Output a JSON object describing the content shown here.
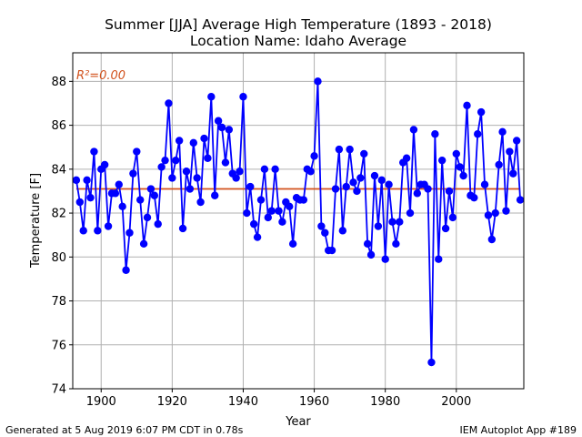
{
  "chart_data": {
    "type": "line",
    "title": "Summer [JJA] Average High Temperature (1893 - 2018)",
    "subtitle": "Location Name: Idaho Average",
    "xlabel": "Year",
    "ylabel": "Temperature [F]",
    "xlim": [
      1892,
      2019
    ],
    "ylim": [
      74,
      89.3
    ],
    "xticks": [
      1900,
      1920,
      1940,
      1960,
      1980,
      2000
    ],
    "yticks": [
      74,
      76,
      78,
      80,
      82,
      84,
      86,
      88
    ],
    "grid": true,
    "annotation": "R²=0.00",
    "annotation_color": "#d2531e",
    "series": [
      {
        "color": "#0000ff",
        "marker": "circle",
        "x": [
          1893,
          1894,
          1895,
          1896,
          1897,
          1898,
          1899,
          1900,
          1901,
          1902,
          1903,
          1904,
          1905,
          1906,
          1907,
          1908,
          1909,
          1910,
          1911,
          1912,
          1913,
          1914,
          1915,
          1916,
          1917,
          1918,
          1919,
          1920,
          1921,
          1922,
          1923,
          1924,
          1925,
          1926,
          1927,
          1928,
          1929,
          1930,
          1931,
          1932,
          1933,
          1934,
          1935,
          1936,
          1937,
          1938,
          1939,
          1940,
          1941,
          1942,
          1943,
          1944,
          1945,
          1946,
          1947,
          1948,
          1949,
          1950,
          1951,
          1952,
          1953,
          1954,
          1955,
          1956,
          1957,
          1958,
          1959,
          1960,
          1961,
          1962,
          1963,
          1964,
          1965,
          1966,
          1967,
          1968,
          1969,
          1970,
          1971,
          1972,
          1973,
          1974,
          1975,
          1976,
          1977,
          1978,
          1979,
          1980,
          1981,
          1982,
          1983,
          1984,
          1985,
          1986,
          1987,
          1988,
          1989,
          1990,
          1991,
          1992,
          1993,
          1994,
          1995,
          1996,
          1997,
          1998,
          1999,
          2000,
          2001,
          2002,
          2003,
          2004,
          2005,
          2006,
          2007,
          2008,
          2009,
          2010,
          2011,
          2012,
          2013,
          2014,
          2015,
          2016,
          2017,
          2018
        ],
        "y": [
          83.5,
          82.5,
          81.2,
          83.5,
          82.7,
          84.8,
          81.2,
          84.0,
          84.2,
          81.4,
          82.9,
          82.9,
          83.3,
          82.3,
          79.4,
          81.1,
          83.8,
          84.8,
          82.6,
          80.6,
          81.8,
          83.1,
          82.8,
          81.5,
          84.1,
          84.4,
          87.0,
          83.6,
          84.4,
          85.3,
          81.3,
          83.9,
          83.1,
          85.2,
          83.6,
          82.5,
          85.4,
          84.5,
          87.3,
          82.8,
          86.2,
          85.9,
          84.3,
          85.8,
          83.8,
          83.6,
          83.9,
          87.3,
          82.0,
          83.2,
          81.5,
          80.9,
          82.6,
          84.0,
          81.8,
          82.1,
          84.0,
          82.1,
          81.6,
          82.5,
          82.3,
          80.6,
          82.7,
          82.6,
          82.6,
          84.0,
          83.9,
          84.6,
          88.0,
          81.4,
          81.1,
          80.3,
          80.3,
          83.1,
          84.9,
          81.2,
          83.2,
          84.9,
          83.4,
          83.0,
          83.6,
          84.7,
          80.6,
          80.1,
          83.7,
          81.4,
          83.5,
          79.9,
          83.3,
          81.6,
          80.6,
          81.6,
          84.3,
          84.5,
          82.0,
          85.8,
          82.9,
          83.3,
          83.3,
          83.1,
          75.2,
          85.6,
          79.9,
          84.4,
          81.3,
          83.0,
          81.8,
          84.7,
          84.1,
          83.7,
          86.9,
          82.8,
          82.7,
          85.6,
          86.6,
          83.3,
          81.9,
          80.8,
          82.0,
          84.2,
          85.7,
          82.1,
          84.8,
          83.8,
          85.3,
          82.6
        ]
      },
      {
        "type": "trend",
        "color": "#d2531e",
        "x": [
          1893,
          2018
        ],
        "y": [
          83.1,
          83.1
        ]
      }
    ]
  },
  "footer": {
    "left": "Generated at 5 Aug 2019 6:07 PM CDT in 0.78s",
    "right": "IEM Autoplot App #189"
  }
}
